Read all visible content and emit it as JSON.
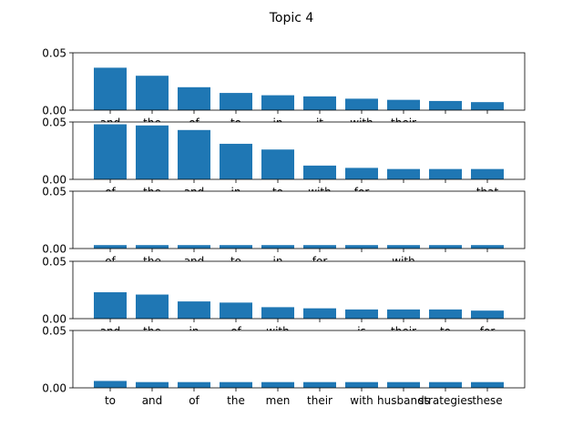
{
  "figure": {
    "title": "Topic 4"
  },
  "chart_data": [
    {
      "type": "bar",
      "categories": [
        "and",
        "the",
        "of",
        "to",
        "in",
        "it",
        "with",
        "their",
        "",
        ""
      ],
      "values": [
        0.037,
        0.03,
        0.02,
        0.015,
        0.013,
        0.012,
        0.01,
        0.009,
        0.008,
        0.007
      ],
      "ylim": [
        0,
        0.05
      ],
      "yticks": [
        "0.00",
        "0.05"
      ]
    },
    {
      "type": "bar",
      "categories": [
        "of",
        "the",
        "and",
        "in",
        "to",
        "with",
        "for",
        "",
        "",
        "that"
      ],
      "values": [
        0.048,
        0.047,
        0.043,
        0.031,
        0.026,
        0.012,
        0.01,
        0.009,
        0.009,
        0.009
      ],
      "ylim": [
        0,
        0.05
      ],
      "yticks": [
        "0.00",
        "0.05"
      ]
    },
    {
      "type": "bar",
      "categories": [
        "of",
        "the",
        "and",
        "to",
        "in",
        "for",
        "",
        "with",
        "",
        ""
      ],
      "values": [
        0.003,
        0.003,
        0.003,
        0.003,
        0.003,
        0.003,
        0.003,
        0.003,
        0.003,
        0.003
      ],
      "ylim": [
        0,
        0.05
      ],
      "yticks": [
        "0.00",
        "0.05"
      ]
    },
    {
      "type": "bar",
      "categories": [
        "and",
        "the",
        "in",
        "of",
        "with",
        "",
        "is",
        "their",
        "to",
        "for"
      ],
      "values": [
        0.023,
        0.021,
        0.015,
        0.014,
        0.01,
        0.009,
        0.008,
        0.008,
        0.008,
        0.007
      ],
      "ylim": [
        0,
        0.05
      ],
      "yticks": [
        "0.00",
        "0.05"
      ]
    },
    {
      "type": "bar",
      "categories": [
        "to",
        "and",
        "of",
        "the",
        "men",
        "their",
        "with",
        "husbands",
        "strategies",
        "these"
      ],
      "values": [
        0.006,
        0.005,
        0.005,
        0.005,
        0.005,
        0.005,
        0.005,
        0.005,
        0.005,
        0.005
      ],
      "ylim": [
        0,
        0.05
      ],
      "yticks": [
        "0.00",
        "0.05"
      ]
    }
  ]
}
